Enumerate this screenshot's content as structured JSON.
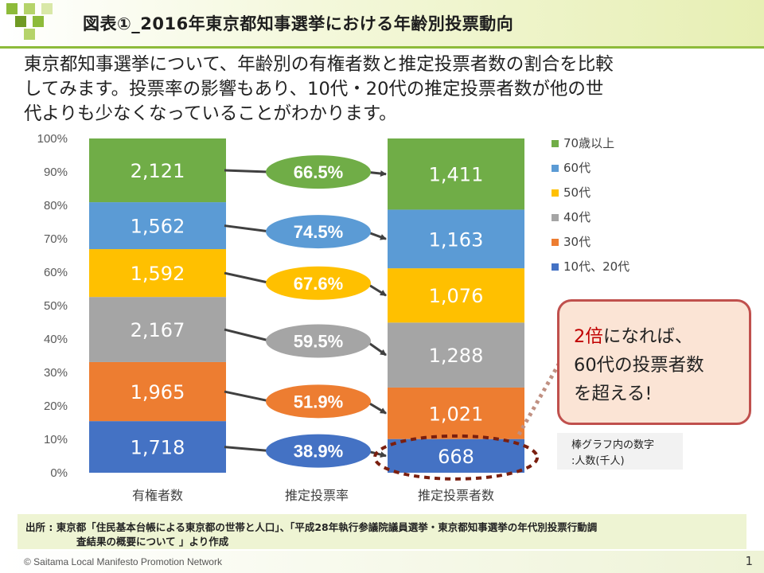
{
  "header": {
    "title": "図表①_2016年東京都知事選挙における年齢別投票動向"
  },
  "intro": {
    "line1": "東京都知事選挙について、年齢別の有権者数と推定投票者数の割合を比較",
    "line2": "してみます。投票率の影響もあり、10代・20代の推定投票者数が他の世",
    "line3": "代よりも少なくなっていることがわかります。"
  },
  "chart_data": {
    "type": "bar",
    "stacked": "percent",
    "categories": [
      "有権者数",
      "推定投票率",
      "推定投票者数"
    ],
    "yticks": [
      "0%",
      "10%",
      "20%",
      "30%",
      "40%",
      "50%",
      "60%",
      "70%",
      "80%",
      "90%",
      "100%"
    ],
    "ylim": [
      0,
      100
    ],
    "legend_position": "right",
    "series": [
      {
        "name": "10代、20代",
        "color": "#4472c4",
        "voters": 1718,
        "rate": "38.9%",
        "est": 668,
        "voters_label": "1,718",
        "est_label": "668"
      },
      {
        "name": "30代",
        "color": "#ed7d31",
        "voters": 1965,
        "rate": "51.9%",
        "est": 1021,
        "voters_label": "1,965",
        "est_label": "1,021"
      },
      {
        "name": "40代",
        "color": "#a5a5a5",
        "voters": 2167,
        "rate": "59.5%",
        "est": 1288,
        "voters_label": "2,167",
        "est_label": "1,288"
      },
      {
        "name": "50代",
        "color": "#ffc000",
        "voters": 1592,
        "rate": "67.6%",
        "est": 1076,
        "voters_label": "1,592",
        "est_label": "1,076"
      },
      {
        "name": "60代",
        "color": "#5b9bd5",
        "voters": 1562,
        "rate": "74.5%",
        "est": 1163,
        "voters_label": "1,562",
        "est_label": "1,163"
      },
      {
        "name": "70歳以上",
        "color": "#70ad47",
        "voters": 2121,
        "rate": "66.5%",
        "est": 1411,
        "voters_label": "2,121",
        "est_label": "1,411"
      }
    ]
  },
  "callout": {
    "line1_highlight": "2倍",
    "line1_rest": "になれば、",
    "line2": "60代の投票者数",
    "line3": "を超える!"
  },
  "note": {
    "line1": "棒グラフ内の数字",
    "line2": ":人数(千人)"
  },
  "source": {
    "line1": "出所 : 東京都「住民基本台帳による東京都の世帯と人口」、「平成28年執行参議院議員選挙・東京都知事選挙の年代別投票行動調",
    "line2": "査結果の概要について 」より作成"
  },
  "footer": {
    "copyright": "© Saitama Local Manifesto Promotion Network",
    "page": "1"
  }
}
